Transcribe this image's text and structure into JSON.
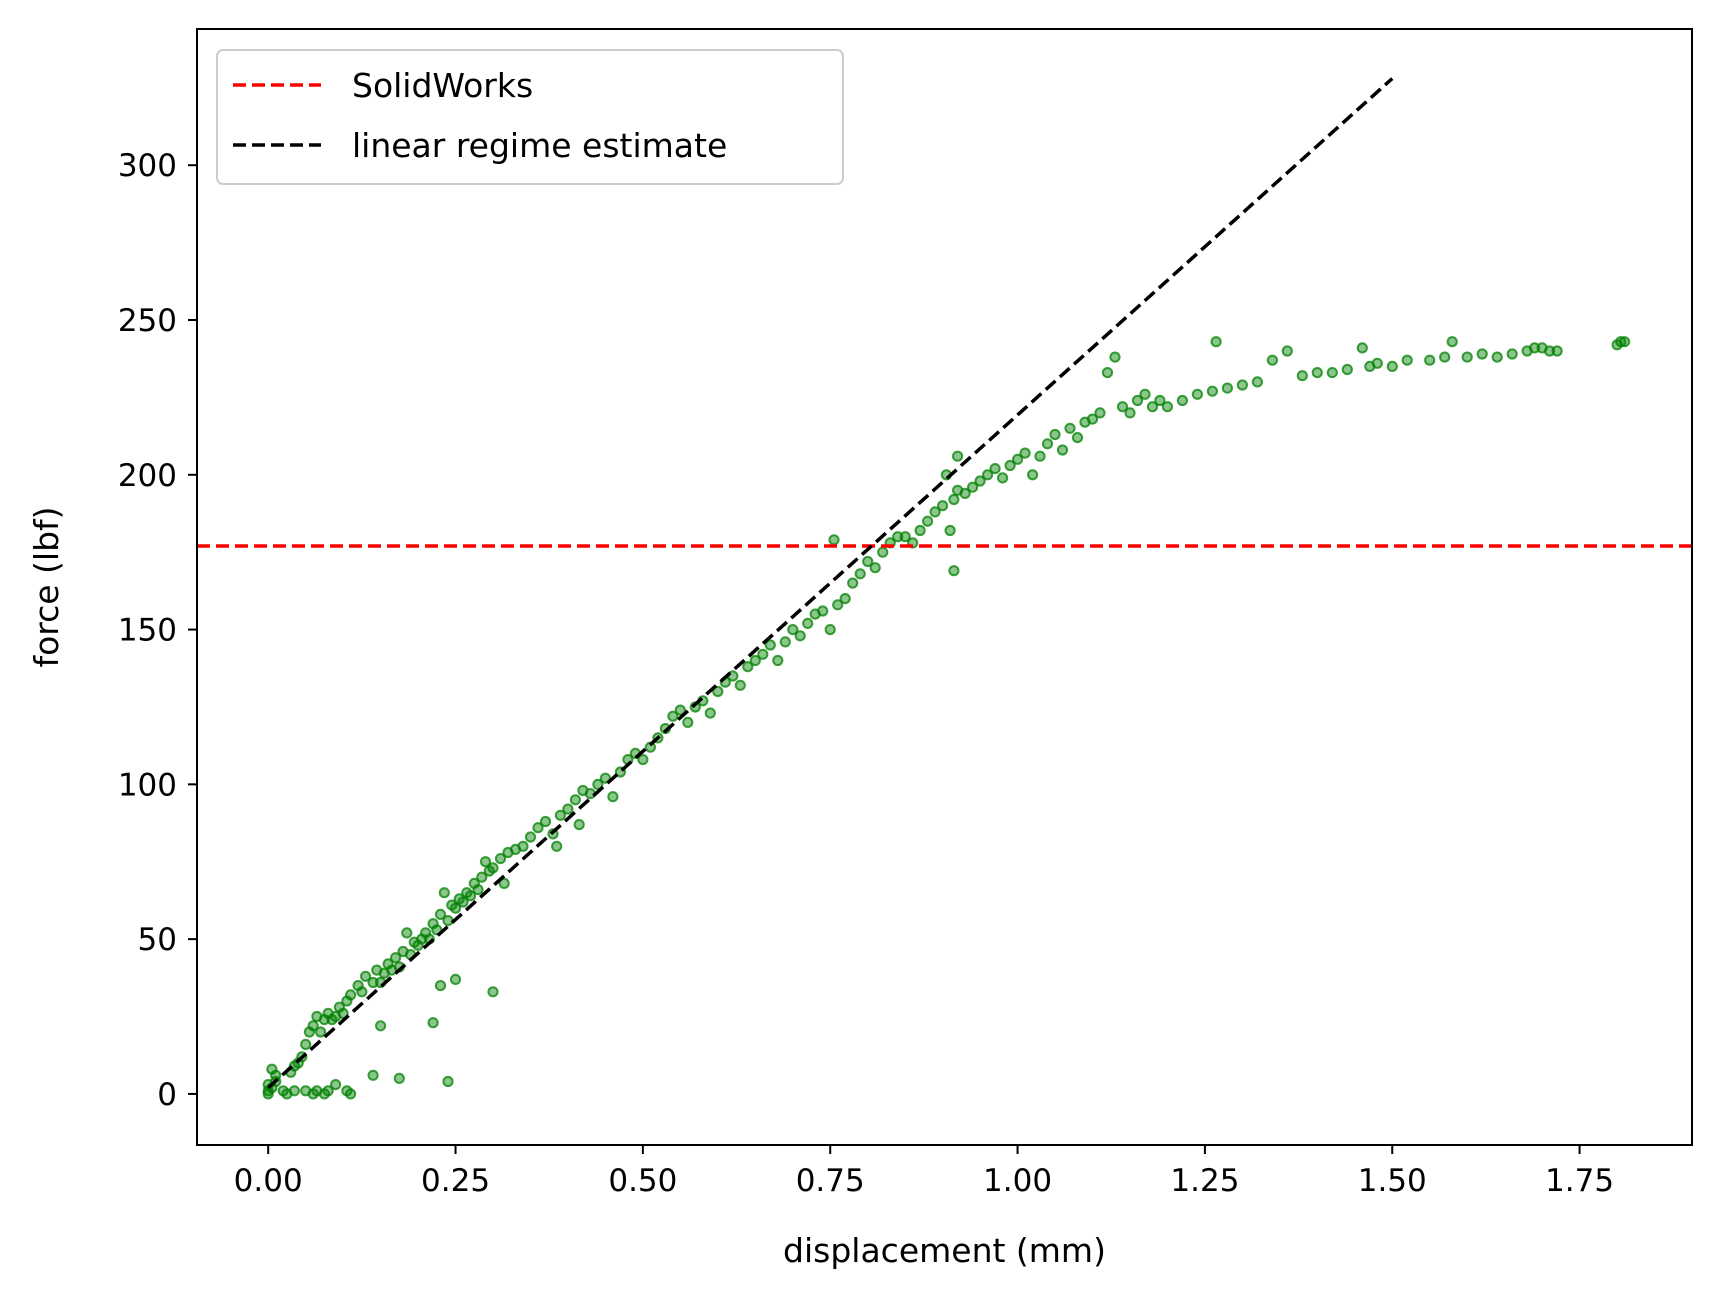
{
  "chart_data": {
    "type": "scatter",
    "xlabel": "displacement (mm)",
    "ylabel": "force (lbf)",
    "xlim": [
      -0.095,
      1.9
    ],
    "ylim": [
      -16.5,
      344
    ],
    "xticks": [
      "0.00",
      "0.25",
      "0.50",
      "0.75",
      "1.00",
      "1.25",
      "1.50",
      "1.75"
    ],
    "xtick_values": [
      0,
      0.25,
      0.5,
      0.75,
      1.0,
      1.25,
      1.5,
      1.75
    ],
    "yticks": [
      "0",
      "50",
      "100",
      "150",
      "200",
      "250",
      "300"
    ],
    "ytick_values": [
      0,
      50,
      100,
      150,
      200,
      250,
      300
    ],
    "grid": false,
    "legend": {
      "placement": "upper-left",
      "entries": [
        {
          "label": "SolidWorks",
          "color": "#ff0000",
          "style": "dashed"
        },
        {
          "label": "linear regime estimate",
          "color": "#000000",
          "style": "dashed"
        }
      ]
    },
    "reference_lines": {
      "solidworks": {
        "type": "horizontal",
        "y": 177,
        "color": "#ff0000"
      },
      "linear_estimate": {
        "type": "segment",
        "x": [
          0,
          1.5
        ],
        "y": [
          2,
          328
        ],
        "color": "#000000"
      }
    },
    "series": [
      {
        "color": "#008000",
        "marker": "circle",
        "points": [
          [
            0,
            0
          ],
          [
            0,
            1
          ],
          [
            0,
            3
          ],
          [
            0.005,
            2
          ],
          [
            0.01,
            4
          ],
          [
            0.005,
            8
          ],
          [
            0.01,
            6
          ],
          [
            0.02,
            1
          ],
          [
            0.025,
            0
          ],
          [
            0.03,
            7
          ],
          [
            0.035,
            9
          ],
          [
            0.04,
            10
          ],
          [
            0.045,
            12
          ],
          [
            0.05,
            16
          ],
          [
            0.055,
            20
          ],
          [
            0.06,
            22
          ],
          [
            0.065,
            25
          ],
          [
            0.07,
            20
          ],
          [
            0.075,
            24
          ],
          [
            0.08,
            26
          ],
          [
            0.085,
            24
          ],
          [
            0.09,
            25
          ],
          [
            0.095,
            28
          ],
          [
            0.1,
            26
          ],
          [
            0.105,
            30
          ],
          [
            0.11,
            32
          ],
          [
            0.12,
            35
          ],
          [
            0.125,
            33
          ],
          [
            0.13,
            38
          ],
          [
            0.14,
            36
          ],
          [
            0.145,
            40
          ],
          [
            0.15,
            36
          ],
          [
            0.155,
            39
          ],
          [
            0.16,
            42
          ],
          [
            0.165,
            40
          ],
          [
            0.17,
            44
          ],
          [
            0.175,
            41
          ],
          [
            0.18,
            46
          ],
          [
            0.185,
            52
          ],
          [
            0.19,
            45
          ],
          [
            0.195,
            49
          ],
          [
            0.2,
            48
          ],
          [
            0.205,
            50
          ],
          [
            0.21,
            52
          ],
          [
            0.215,
            50
          ],
          [
            0.22,
            55
          ],
          [
            0.225,
            53
          ],
          [
            0.23,
            58
          ],
          [
            0.235,
            65
          ],
          [
            0.24,
            56
          ],
          [
            0.245,
            61
          ],
          [
            0.25,
            60
          ],
          [
            0.255,
            63
          ],
          [
            0.26,
            62
          ],
          [
            0.265,
            65
          ],
          [
            0.27,
            64
          ],
          [
            0.275,
            68
          ],
          [
            0.28,
            66
          ],
          [
            0.285,
            70
          ],
          [
            0.29,
            75
          ],
          [
            0.295,
            72
          ],
          [
            0.3,
            73
          ],
          [
            0.31,
            76
          ],
          [
            0.315,
            68
          ],
          [
            0.32,
            78
          ],
          [
            0.33,
            79
          ],
          [
            0.34,
            80
          ],
          [
            0.35,
            83
          ],
          [
            0.36,
            86
          ],
          [
            0.37,
            88
          ],
          [
            0.38,
            84
          ],
          [
            0.385,
            80
          ],
          [
            0.39,
            90
          ],
          [
            0.4,
            92
          ],
          [
            0.41,
            95
          ],
          [
            0.415,
            87
          ],
          [
            0.42,
            98
          ],
          [
            0.43,
            97
          ],
          [
            0.44,
            100
          ],
          [
            0.45,
            102
          ],
          [
            0.46,
            96
          ],
          [
            0.47,
            104
          ],
          [
            0.48,
            108
          ],
          [
            0.49,
            110
          ],
          [
            0.5,
            108
          ],
          [
            0.51,
            112
          ],
          [
            0.52,
            115
          ],
          [
            0.53,
            118
          ],
          [
            0.54,
            122
          ],
          [
            0.55,
            124
          ],
          [
            0.56,
            120
          ],
          [
            0.57,
            125
          ],
          [
            0.58,
            127
          ],
          [
            0.59,
            123
          ],
          [
            0.6,
            130
          ],
          [
            0.61,
            133
          ],
          [
            0.62,
            135
          ],
          [
            0.63,
            132
          ],
          [
            0.64,
            138
          ],
          [
            0.65,
            140
          ],
          [
            0.66,
            142
          ],
          [
            0.67,
            145
          ],
          [
            0.68,
            140
          ],
          [
            0.69,
            146
          ],
          [
            0.7,
            150
          ],
          [
            0.71,
            148
          ],
          [
            0.72,
            152
          ],
          [
            0.73,
            155
          ],
          [
            0.74,
            156
          ],
          [
            0.75,
            150
          ],
          [
            0.755,
            179
          ],
          [
            0.76,
            158
          ],
          [
            0.77,
            160
          ],
          [
            0.78,
            165
          ],
          [
            0.79,
            168
          ],
          [
            0.8,
            172
          ],
          [
            0.81,
            170
          ],
          [
            0.82,
            175
          ],
          [
            0.83,
            178
          ],
          [
            0.84,
            180
          ],
          [
            0.85,
            180
          ],
          [
            0.86,
            178
          ],
          [
            0.87,
            182
          ],
          [
            0.88,
            185
          ],
          [
            0.89,
            188
          ],
          [
            0.9,
            190
          ],
          [
            0.905,
            200
          ],
          [
            0.91,
            182
          ],
          [
            0.915,
            192
          ],
          [
            0.92,
            195
          ],
          [
            0.915,
            169
          ],
          [
            0.92,
            206
          ],
          [
            0.93,
            194
          ],
          [
            0.94,
            196
          ],
          [
            0.95,
            198
          ],
          [
            0.96,
            200
          ],
          [
            0.97,
            202
          ],
          [
            0.98,
            199
          ],
          [
            0.99,
            203
          ],
          [
            1.0,
            205
          ],
          [
            1.01,
            207
          ],
          [
            1.02,
            200
          ],
          [
            1.03,
            206
          ],
          [
            1.04,
            210
          ],
          [
            1.05,
            213
          ],
          [
            1.06,
            208
          ],
          [
            1.07,
            215
          ],
          [
            1.08,
            212
          ],
          [
            1.09,
            217
          ],
          [
            1.1,
            218
          ],
          [
            1.11,
            220
          ],
          [
            1.12,
            233
          ],
          [
            1.13,
            238
          ],
          [
            1.14,
            222
          ],
          [
            1.15,
            220
          ],
          [
            1.16,
            224
          ],
          [
            1.17,
            226
          ],
          [
            1.18,
            222
          ],
          [
            1.19,
            224
          ],
          [
            1.2,
            222
          ],
          [
            1.22,
            224
          ],
          [
            1.24,
            226
          ],
          [
            1.26,
            227
          ],
          [
            1.265,
            243
          ],
          [
            1.28,
            228
          ],
          [
            1.3,
            229
          ],
          [
            1.32,
            230
          ],
          [
            1.34,
            237
          ],
          [
            1.36,
            240
          ],
          [
            1.38,
            232
          ],
          [
            1.4,
            233
          ],
          [
            1.42,
            233
          ],
          [
            1.44,
            234
          ],
          [
            1.46,
            241
          ],
          [
            1.47,
            235
          ],
          [
            1.48,
            236
          ],
          [
            1.5,
            235
          ],
          [
            1.52,
            237
          ],
          [
            1.55,
            237
          ],
          [
            1.57,
            238
          ],
          [
            1.58,
            243
          ],
          [
            1.6,
            238
          ],
          [
            1.62,
            239
          ],
          [
            1.64,
            238
          ],
          [
            1.66,
            239
          ],
          [
            1.68,
            240
          ],
          [
            1.69,
            241
          ],
          [
            1.7,
            241
          ],
          [
            1.71,
            240
          ],
          [
            1.72,
            240
          ],
          [
            1.8,
            242
          ],
          [
            1.805,
            243
          ],
          [
            1.81,
            243
          ],
          [
            0.035,
            1
          ],
          [
            0.05,
            1
          ],
          [
            0.06,
            0
          ],
          [
            0.065,
            1
          ],
          [
            0.075,
            0
          ],
          [
            0.08,
            1
          ],
          [
            0.09,
            3
          ],
          [
            0.105,
            1
          ],
          [
            0.11,
            0
          ],
          [
            0.14,
            6
          ],
          [
            0.175,
            5
          ],
          [
            0.24,
            4
          ],
          [
            0.15,
            22
          ],
          [
            0.22,
            23
          ],
          [
            0.23,
            35
          ],
          [
            0.25,
            37
          ],
          [
            0.3,
            33
          ]
        ]
      }
    ]
  }
}
